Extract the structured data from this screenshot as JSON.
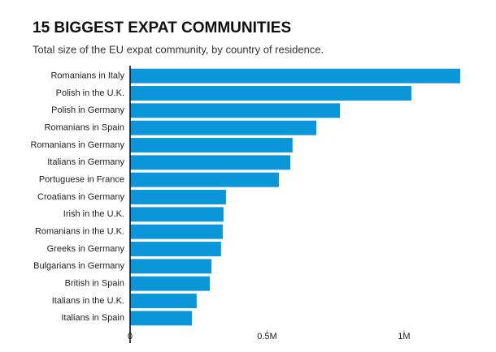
{
  "chart_data": {
    "type": "barh",
    "title": "15 BIGGEST EXPAT COMMUNITIES",
    "subtitle": "Total size of the EU expat community, by country of residence.",
    "categories": [
      "Romanians in Italy",
      "Polish in the U.K.",
      "Polish in Germany",
      "Romanians in Spain",
      "Romanians in Germany",
      "Italians in Germany",
      "Portuguese in France",
      "Croatians in Germany",
      "Irish in the U.K.",
      "Romanians in the U.K.",
      "Greeks in Germany",
      "Bulgarians in Germany",
      "British in Spain",
      "Italians in the U.K.",
      "Italians in Spain"
    ],
    "values": [
      1205000,
      1027000,
      766000,
      680000,
      593000,
      585000,
      543000,
      350000,
      341000,
      338000,
      332000,
      297000,
      291000,
      243000,
      226000
    ],
    "color": "#0a96d9",
    "xlim": [
      0,
      1220000
    ],
    "xticks": [
      0,
      {
        "value": 500000,
        "label": "0.5M"
      },
      {
        "value": 1000000,
        "label": "1M"
      }
    ]
  }
}
